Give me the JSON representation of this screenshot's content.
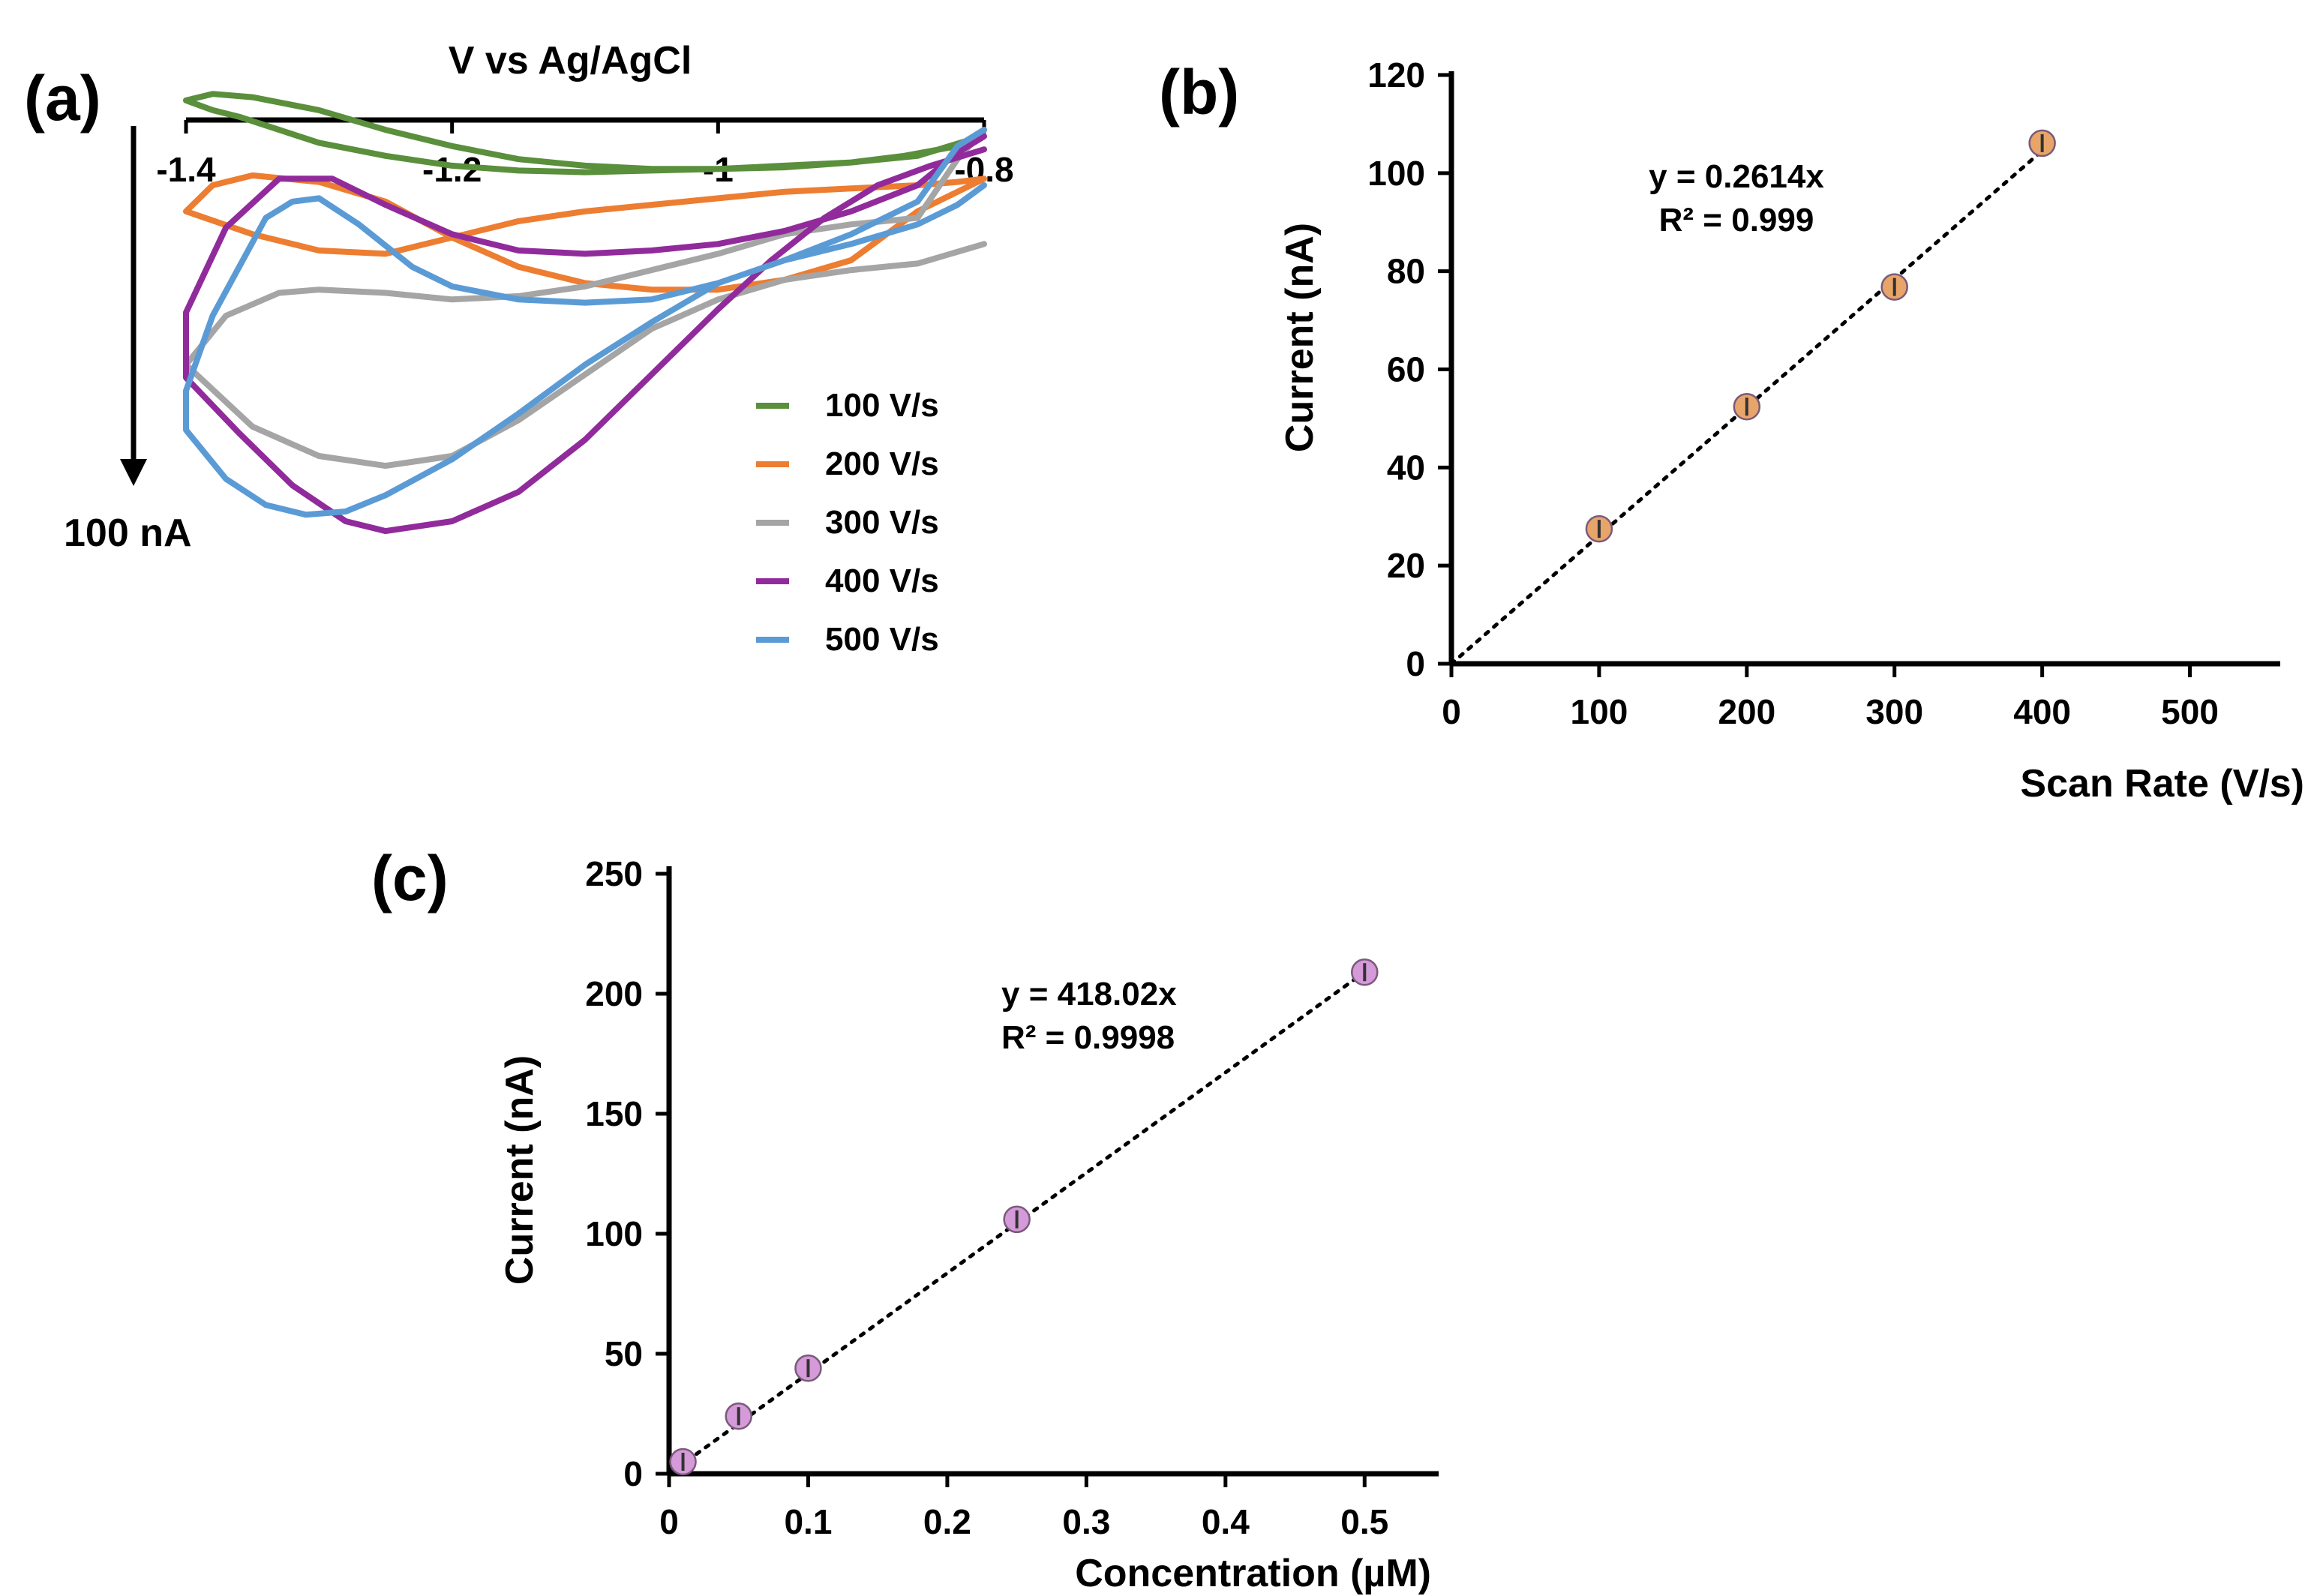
{
  "chart_data": [
    {
      "panel": "(a)",
      "type": "line",
      "title": "",
      "xlabel": "V vs Ag/AgCl",
      "ylabel": "",
      "xlim": [
        -1.4,
        -0.8
      ],
      "x_ticks": [
        "-1.4",
        "-1.2",
        "-1",
        "-0.8"
      ],
      "scale_bar_label": "100 nA",
      "scale_bar_nA": 100,
      "y_units": "nA (negative = downward, reduction current)",
      "legend": [
        "100 V/s",
        "200 V/s",
        "300 V/s",
        "400 V/s",
        "500 V/s"
      ],
      "series": [
        {
          "name": "100 V/s",
          "color": "#5a8f3c",
          "x": [
            -0.8,
            -0.82,
            -0.86,
            -0.9,
            -0.95,
            -1.0,
            -1.05,
            -1.1,
            -1.15,
            -1.2,
            -1.25,
            -1.3,
            -1.33,
            -1.36,
            -1.38,
            -1.4,
            -1.38,
            -1.35,
            -1.3,
            -1.25,
            -1.2,
            -1.15,
            -1.1,
            -1.05,
            -1.0,
            -0.95,
            -0.9,
            -0.85,
            -0.81,
            -0.8
          ],
          "y": [
            -3,
            -8,
            -11,
            -13,
            -14,
            -15,
            -15.5,
            -16,
            -15.5,
            -14,
            -11,
            -7,
            -3,
            1,
            3,
            6,
            8,
            7,
            3,
            -3,
            -8,
            -12,
            -14,
            -15,
            -15,
            -14.5,
            -13,
            -11,
            -6,
            -3
          ]
        },
        {
          "name": "200 V/s",
          "color": "#ed7d31",
          "x": [
            -0.8,
            -0.82,
            -0.85,
            -0.9,
            -0.95,
            -1.0,
            -1.05,
            -1.1,
            -1.15,
            -1.2,
            -1.25,
            -1.3,
            -1.35,
            -1.4,
            -1.38,
            -1.35,
            -1.3,
            -1.25,
            -1.2,
            -1.15,
            -1.1,
            -1.05,
            -1.0,
            -0.95,
            -0.9,
            -0.85,
            -0.8
          ],
          "y": [
            -18,
            -19,
            -20,
            -21,
            -22,
            -24,
            -26,
            -28,
            -31,
            -36,
            -41,
            -40,
            -35,
            -28,
            -20,
            -17,
            -19,
            -25,
            -36,
            -45,
            -50,
            -52,
            -52,
            -49,
            -43,
            -28,
            -18
          ]
        },
        {
          "name": "300 V/s",
          "color": "#a5a5a5",
          "x": [
            -0.8,
            -0.85,
            -0.9,
            -0.95,
            -1.0,
            -1.05,
            -1.1,
            -1.15,
            -1.2,
            -1.25,
            -1.3,
            -1.35,
            -1.4,
            -1.37,
            -1.33,
            -1.3,
            -1.25,
            -1.2,
            -1.15,
            -1.1,
            -1.05,
            -1.0,
            -0.95,
            -0.9,
            -0.85,
            -0.82,
            -0.8
          ],
          "y": [
            -38,
            -44,
            -46,
            -49,
            -55,
            -64,
            -78,
            -92,
            -103,
            -106,
            -103,
            -94,
            -75,
            -60,
            -53,
            -52,
            -53,
            -55,
            -54,
            -51,
            -46,
            -41,
            -35,
            -32,
            -30,
            -12,
            -3
          ]
        },
        {
          "name": "400 V/s",
          "color": "#912b9c",
          "x": [
            -0.8,
            -0.84,
            -0.88,
            -0.92,
            -0.96,
            -1.0,
            -1.05,
            -1.1,
            -1.15,
            -1.2,
            -1.25,
            -1.28,
            -1.32,
            -1.36,
            -1.4,
            -1.4,
            -1.37,
            -1.33,
            -1.29,
            -1.25,
            -1.2,
            -1.15,
            -1.1,
            -1.05,
            -1.0,
            -0.95,
            -0.9,
            -0.85,
            -0.82,
            -0.8
          ],
          "y": [
            -9,
            -14,
            -20,
            -30,
            -43,
            -58,
            -78,
            -98,
            -114,
            -123,
            -126,
            -123,
            -112,
            -96,
            -79,
            -59,
            -33,
            -18,
            -18,
            -26,
            -35,
            -40,
            -41,
            -40,
            -38,
            -34,
            -28,
            -20,
            -10,
            -5
          ]
        },
        {
          "name": "500 V/s",
          "color": "#5b9bd5",
          "x": [
            -0.8,
            -0.82,
            -0.85,
            -0.9,
            -0.95,
            -1.0,
            -1.05,
            -1.1,
            -1.15,
            -1.2,
            -1.25,
            -1.28,
            -1.31,
            -1.34,
            -1.37,
            -1.4,
            -1.4,
            -1.38,
            -1.36,
            -1.34,
            -1.32,
            -1.3,
            -1.27,
            -1.23,
            -1.2,
            -1.15,
            -1.1,
            -1.05,
            -1.0,
            -0.95,
            -0.9,
            -0.85,
            -0.82,
            -0.8
          ],
          "y": [
            -20,
            -26,
            -32,
            -38,
            -43,
            -50,
            -62,
            -75,
            -90,
            -104,
            -115,
            -120,
            -121,
            -118,
            -110,
            -95,
            -83,
            -60,
            -45,
            -30,
            -25,
            -24,
            -32,
            -45,
            -51,
            -55,
            -56,
            -55,
            -50,
            -43,
            -35,
            -25,
            -8,
            -3
          ]
        }
      ]
    },
    {
      "panel": "(b)",
      "type": "scatter",
      "title": "",
      "xlabel": "Scan Rate (V/s)",
      "ylabel": "Current (nA)",
      "xlim": [
        0,
        550
      ],
      "ylim": [
        0,
        120
      ],
      "x_ticks": [
        "0",
        "100",
        "200",
        "300",
        "400",
        "500"
      ],
      "y_ticks": [
        "0",
        "20",
        "40",
        "60",
        "80",
        "100",
        "120"
      ],
      "x_tick_values": [
        0,
        100,
        200,
        300,
        400,
        500
      ],
      "y_tick_values": [
        0,
        20,
        40,
        60,
        80,
        100,
        120
      ],
      "marker_color": "#e8a56a",
      "x": [
        100,
        200,
        300,
        400
      ],
      "y": [
        27.5,
        52.4,
        76.8,
        106.1
      ],
      "trendline": {
        "slope": 0.2614,
        "x_range": [
          0,
          400
        ]
      },
      "equation": "y = 0.2614x",
      "r_squared": "R² = 0.999"
    },
    {
      "panel": "(c)",
      "type": "scatter",
      "title": "",
      "xlabel": "Concentration (µM)",
      "ylabel": "Current (nA)",
      "xlim": [
        0,
        0.55
      ],
      "ylim": [
        0,
        250
      ],
      "x_ticks": [
        "0",
        "0.1",
        "0.2",
        "0.3",
        "0.4",
        "0.5"
      ],
      "y_ticks": [
        "0",
        "50",
        "100",
        "150",
        "200",
        "250"
      ],
      "x_tick_values": [
        0,
        0.1,
        0.2,
        0.3,
        0.4,
        0.5
      ],
      "y_tick_values": [
        0,
        50,
        100,
        150,
        200,
        250
      ],
      "marker_color": "#d59ad9",
      "x": [
        0.01,
        0.05,
        0.1,
        0.25,
        0.5
      ],
      "y": [
        5,
        24,
        44,
        106,
        209
      ],
      "trendline": {
        "slope": 418.02,
        "x_range": [
          0,
          0.5
        ]
      },
      "equation": "y = 418.02x",
      "r_squared": "R² = 0.9998"
    }
  ]
}
